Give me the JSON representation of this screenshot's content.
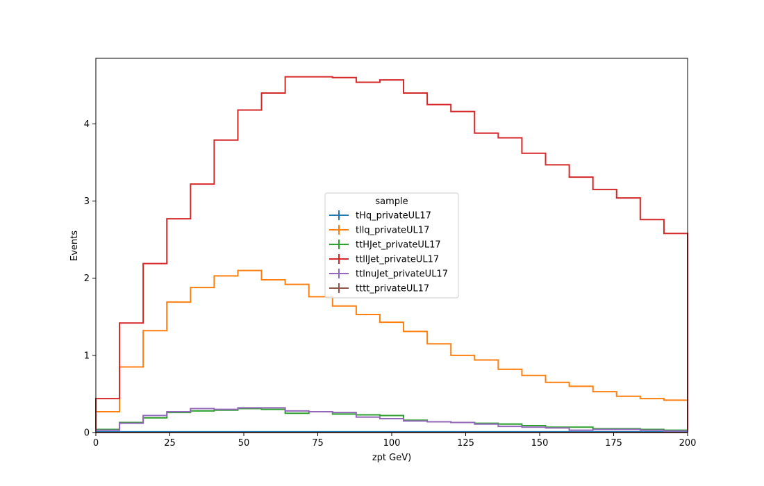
{
  "chart_data": {
    "type": "line",
    "drawstyle": "steps",
    "xlabel": "zpt GeV)",
    "ylabel": "Events",
    "xlim": [
      0,
      200
    ],
    "ylim": [
      0,
      4.85
    ],
    "xticks": [
      "0",
      "25",
      "50",
      "75",
      "100",
      "125",
      "150",
      "175",
      "200"
    ],
    "yticks": [
      "0",
      "1",
      "2",
      "3",
      "4"
    ],
    "grid": false,
    "legend": {
      "title": "sample",
      "placement": "center"
    },
    "bin_edges": [
      0,
      8,
      16,
      24,
      32,
      40,
      48,
      56,
      64,
      72,
      80,
      88,
      96,
      104,
      112,
      120,
      128,
      136,
      144,
      152,
      160,
      168,
      176,
      184,
      192,
      200
    ],
    "series": [
      {
        "name": "tHq_privateUL17",
        "color": "#1f77b4",
        "values": [
          0.01,
          0.01,
          0.01,
          0.01,
          0.01,
          0.01,
          0.01,
          0.01,
          0.01,
          0.01,
          0.01,
          0.01,
          0.01,
          0.01,
          0.01,
          0.01,
          0.01,
          0.01,
          0.01,
          0.01,
          0.01,
          0.01,
          0.01,
          0.01,
          0.01
        ]
      },
      {
        "name": "tllq_privateUL17",
        "color": "#ff7f0e",
        "values": [
          0.27,
          0.85,
          1.32,
          1.69,
          1.88,
          2.03,
          2.1,
          1.98,
          1.92,
          1.76,
          1.64,
          1.53,
          1.43,
          1.31,
          1.15,
          1.0,
          0.94,
          0.82,
          0.74,
          0.65,
          0.6,
          0.53,
          0.47,
          0.44,
          0.42
        ]
      },
      {
        "name": "ttHJet_privateUL17",
        "color": "#2ca02c",
        "values": [
          0.04,
          0.13,
          0.19,
          0.26,
          0.28,
          0.29,
          0.31,
          0.3,
          0.25,
          0.27,
          0.24,
          0.23,
          0.22,
          0.16,
          0.14,
          0.13,
          0.12,
          0.11,
          0.09,
          0.07,
          0.07,
          0.05,
          0.05,
          0.04,
          0.03
        ]
      },
      {
        "name": "ttllJet_privateUL17",
        "color": "#d62728",
        "values": [
          0.44,
          1.42,
          2.19,
          2.77,
          3.22,
          3.79,
          4.18,
          4.4,
          4.61,
          4.61,
          4.6,
          4.54,
          4.57,
          4.4,
          4.25,
          4.16,
          3.88,
          3.82,
          3.62,
          3.47,
          3.31,
          3.15,
          3.04,
          2.76,
          2.58
        ]
      },
      {
        "name": "ttlnuJet_privateUL17",
        "color": "#9467bd",
        "values": [
          0.03,
          0.12,
          0.22,
          0.27,
          0.31,
          0.3,
          0.32,
          0.32,
          0.28,
          0.27,
          0.26,
          0.2,
          0.18,
          0.15,
          0.14,
          0.13,
          0.11,
          0.08,
          0.07,
          0.06,
          0.03,
          0.04,
          0.04,
          0.03,
          0.02
        ]
      },
      {
        "name": "tttt_privateUL17",
        "color": "#8c564b",
        "values": [
          0.0,
          0.0,
          0.0,
          0.0,
          0.0,
          0.0,
          0.0,
          0.0,
          0.0,
          0.0,
          0.0,
          0.0,
          0.0,
          0.0,
          0.0,
          0.0,
          0.0,
          0.0,
          0.0,
          0.0,
          0.0,
          0.0,
          0.0,
          0.0,
          0.0
        ]
      }
    ]
  }
}
